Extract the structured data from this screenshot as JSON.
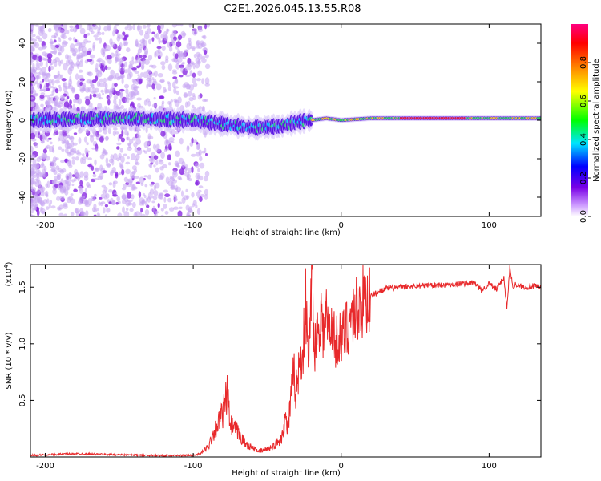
{
  "title": "C2E1.2026.045.13.55.R08",
  "chart_data": [
    {
      "type": "heatmap",
      "name": "spectrogram",
      "xlabel": "Height of straight line (km)",
      "ylabel": "Frequency (Hz)",
      "xlim": [
        -210,
        135
      ],
      "ylim": [
        -50,
        50
      ],
      "xticks": [
        -200,
        -100,
        0,
        100
      ],
      "yticks": [
        -40,
        -20,
        0,
        20,
        40
      ],
      "x_tick_labels": [
        "-200",
        "-100",
        "0",
        "100"
      ],
      "y_tick_labels": [
        "-40",
        "-20",
        "0",
        "20",
        "40"
      ],
      "ridge_frequency_hz": {
        "x": [
          -210,
          -150,
          -100,
          -80,
          -60,
          -40,
          -30,
          -20,
          -10,
          0,
          20,
          60,
          100,
          135
        ],
        "y": [
          0,
          1,
          0,
          -2,
          -4,
          -3,
          -1,
          0,
          1,
          0,
          1,
          1,
          1,
          1
        ]
      },
      "colorbar": {
        "label": "Normalized spectral amplitude",
        "range": [
          0,
          1
        ],
        "ticks": [
          0.0,
          0.2,
          0.4,
          0.6,
          0.8
        ],
        "tick_labels": [
          "0.0",
          "0.2",
          "0.4",
          "0.6",
          "0.8"
        ],
        "colors": [
          "#ffffff",
          "#cc99ff",
          "#7a00e6",
          "#0000ff",
          "#00e5ff",
          "#00ff00",
          "#ffff00",
          "#ff8000",
          "#ff0000",
          "#ff0080"
        ]
      }
    },
    {
      "type": "line",
      "name": "snr",
      "xlabel": "Height of straight line (km)",
      "ylabel": "SNR (10 * v/v)",
      "y_multiplier_label": "(x10",
      "y_multiplier_exp": "4",
      "y_multiplier_close": ")",
      "xlim": [
        -210,
        135
      ],
      "ylim": [
        0,
        17000
      ],
      "xticks": [
        -200,
        -100,
        0,
        100
      ],
      "yticks": [
        5000,
        10000,
        15000
      ],
      "x_tick_labels": [
        "-200",
        "-100",
        "0",
        "100"
      ],
      "y_tick_labels": [
        "0.5",
        "1.0",
        "1.5"
      ],
      "color": "#e8292b",
      "series": [
        {
          "name": "SNR",
          "x": [
            -210,
            -180,
            -150,
            -120,
            -100,
            -95,
            -90,
            -85,
            -80,
            -77,
            -75,
            -72,
            -70,
            -65,
            -60,
            -55,
            -50,
            -45,
            -40,
            -38,
            -36,
            -34,
            -32,
            -30,
            -28,
            -26,
            -24,
            -22,
            -20,
            -18,
            -16,
            -14,
            -12,
            -10,
            -8,
            -6,
            -4,
            -2,
            0,
            5,
            10,
            15,
            20,
            25,
            30,
            40,
            50,
            60,
            70,
            80,
            90,
            95,
            100,
            105,
            110,
            112,
            114,
            116,
            118,
            120,
            125,
            130,
            135
          ],
          "y": [
            150,
            300,
            200,
            120,
            150,
            300,
            900,
            2500,
            3800,
            5500,
            2800,
            2500,
            2200,
            1200,
            800,
            500,
            700,
            1000,
            1800,
            3500,
            2500,
            5000,
            7200,
            6000,
            8500,
            9000,
            13500,
            8000,
            16500,
            9800,
            11000,
            13000,
            11000,
            12500,
            10500,
            12000,
            9500,
            11000,
            10000,
            12000,
            13000,
            13800,
            14200,
            14600,
            14900,
            15000,
            15100,
            15200,
            15200,
            15300,
            15400,
            14700,
            15300,
            14800,
            15900,
            13000,
            16800,
            15000,
            15300,
            15100,
            15000,
            15100,
            15000
          ]
        }
      ]
    }
  ]
}
